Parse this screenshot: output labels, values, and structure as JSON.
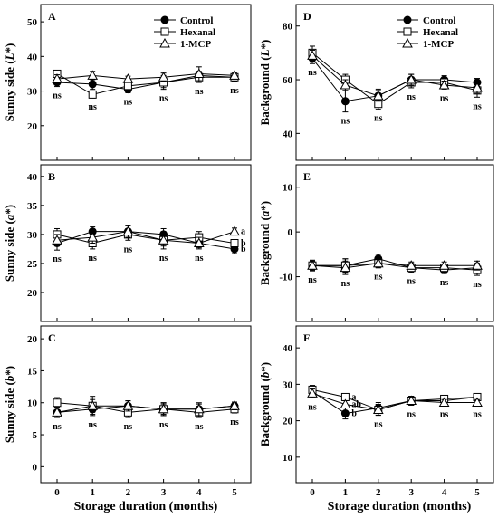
{
  "chart_data": [
    {
      "type": "line",
      "panel": "A",
      "ylabel_main": "Sunny side (",
      "ylabel_var": "L",
      "ylabel_suffix": "*)",
      "x": [
        0,
        1,
        2,
        3,
        4,
        5
      ],
      "ylim": [
        10,
        55
      ],
      "yticks": [
        20,
        30,
        40,
        50
      ],
      "series": [
        {
          "name": "Control",
          "marker": "circle-filled",
          "values": [
            32.5,
            32,
            30.5,
            32.5,
            34.5,
            34
          ],
          "err": [
            1.2,
            1.5,
            1.0,
            1.5,
            1.2,
            1.0
          ]
        },
        {
          "name": "Hexanal",
          "marker": "square-open",
          "values": [
            35,
            29,
            31.5,
            32.5,
            34,
            34
          ],
          "err": [
            1.0,
            1.0,
            1.0,
            2.0,
            1.5,
            1.2
          ]
        },
        {
          "name": "1-MCP",
          "marker": "triangle-open",
          "values": [
            33.5,
            34.5,
            33.5,
            34,
            35,
            34.5
          ],
          "err": [
            1.2,
            1.2,
            0.8,
            1.2,
            2.0,
            1.0
          ]
        }
      ],
      "annotations": [
        "ns",
        "ns",
        "ns",
        "ns",
        "ns",
        "ns"
      ],
      "legend": true
    },
    {
      "type": "line",
      "panel": "B",
      "ylabel_main": "Sunny side (",
      "ylabel_var": "a",
      "ylabel_suffix": "*)",
      "x": [
        0,
        1,
        2,
        3,
        4,
        5
      ],
      "ylim": [
        15,
        42
      ],
      "yticks": [
        20,
        25,
        30,
        35,
        40
      ],
      "series": [
        {
          "name": "Control",
          "marker": "circle-filled",
          "values": [
            28.5,
            30.5,
            30.5,
            30,
            28.5,
            27.5
          ],
          "err": [
            1.2,
            0.8,
            1.0,
            1.0,
            0.8,
            0.8
          ]
        },
        {
          "name": "Hexanal",
          "marker": "square-open",
          "values": [
            30,
            28.5,
            30,
            29,
            29.5,
            28.5
          ],
          "err": [
            1.0,
            1.0,
            1.0,
            1.5,
            1.0,
            0.6
          ]
        },
        {
          "name": "1-MCP",
          "marker": "triangle-open",
          "values": [
            29,
            29.5,
            30.5,
            29,
            28.5,
            30.5
          ],
          "err": [
            1.0,
            1.0,
            1.0,
            1.0,
            1.0,
            0.6
          ]
        }
      ],
      "annotations": [
        "ns",
        "ns",
        "ns",
        "ns",
        "ns",
        ""
      ],
      "group_labels": [
        "a",
        "b",
        "b"
      ],
      "legend": false
    },
    {
      "type": "line",
      "panel": "C",
      "ylabel_main": "Sunny side (",
      "ylabel_var": "b",
      "ylabel_suffix": "*)",
      "x": [
        0,
        1,
        2,
        3,
        4,
        5
      ],
      "ylim": [
        -2.5,
        22
      ],
      "yticks": [
        0,
        5,
        10,
        15,
        20
      ],
      "series": [
        {
          "name": "Control",
          "marker": "circle-filled",
          "values": [
            8.5,
            9,
            9.5,
            9,
            9,
            9.5
          ],
          "err": [
            0.8,
            0.8,
            0.8,
            0.8,
            0.8,
            0.6
          ]
        },
        {
          "name": "Hexanal",
          "marker": "square-open",
          "values": [
            10,
            9.5,
            8.5,
            9,
            8.5,
            9
          ],
          "err": [
            0.8,
            1.0,
            0.8,
            1.0,
            0.8,
            0.6
          ]
        },
        {
          "name": "1-MCP",
          "marker": "triangle-open",
          "values": [
            8.5,
            9.5,
            9.5,
            9,
            9,
            9.5
          ],
          "err": [
            0.8,
            1.5,
            0.8,
            1.0,
            1.0,
            0.6
          ]
        }
      ],
      "annotations": [
        "ns",
        "ns",
        "ns",
        "ns",
        "ns",
        "ns"
      ],
      "legend": false
    },
    {
      "type": "line",
      "panel": "D",
      "ylabel_main": "Background (",
      "ylabel_var": "L",
      "ylabel_suffix": "*)",
      "x": [
        0,
        1,
        2,
        3,
        4,
        5
      ],
      "ylim": [
        30,
        88
      ],
      "yticks": [
        40,
        60,
        80
      ],
      "series": [
        {
          "name": "Control",
          "marker": "circle-filled",
          "values": [
            68,
            52,
            54,
            60,
            60,
            59
          ],
          "err": [
            2.0,
            4.0,
            2.5,
            2.0,
            1.5,
            1.5
          ]
        },
        {
          "name": "Hexanal",
          "marker": "square-open",
          "values": [
            70,
            60,
            51,
            59,
            59,
            56
          ],
          "err": [
            2.5,
            2.0,
            2.0,
            2.0,
            1.5,
            2.5
          ]
        },
        {
          "name": "1-MCP",
          "marker": "triangle-open",
          "values": [
            69,
            58,
            54,
            60,
            58,
            57
          ],
          "err": [
            2.0,
            2.0,
            2.0,
            2.0,
            1.5,
            2.0
          ]
        }
      ],
      "annotations": [
        "ns",
        "ns",
        "ns",
        "ns",
        "ns",
        "ns"
      ],
      "legend": true
    },
    {
      "type": "line",
      "panel": "E",
      "ylabel_main": "Background (",
      "ylabel_var": "a",
      "ylabel_suffix": "*)",
      "x": [
        0,
        1,
        2,
        3,
        4,
        5
      ],
      "ylim": [
        -20,
        15
      ],
      "yticks": [
        -10,
        0,
        10
      ],
      "series": [
        {
          "name": "Control",
          "marker": "circle-filled",
          "values": [
            -7.5,
            -7.5,
            -6,
            -8,
            -8.5,
            -8
          ],
          "err": [
            1.0,
            1.5,
            1.0,
            0.8,
            0.8,
            1.0
          ]
        },
        {
          "name": "Hexanal",
          "marker": "square-open",
          "values": [
            -7.5,
            -7.5,
            -7,
            -8,
            -8,
            -8.5
          ],
          "err": [
            1.2,
            1.5,
            1.0,
            1.0,
            0.8,
            1.2
          ]
        },
        {
          "name": "1-MCP",
          "marker": "triangle-open",
          "values": [
            -7.5,
            -8,
            -7,
            -7.5,
            -7.5,
            -7.5
          ],
          "err": [
            1.0,
            1.5,
            1.0,
            0.8,
            0.8,
            1.0
          ]
        }
      ],
      "annotations": [
        "ns",
        "ns",
        "ns",
        "ns",
        "ns",
        "ns"
      ],
      "legend": false
    },
    {
      "type": "line",
      "panel": "F",
      "ylabel_main": "Background (",
      "ylabel_var": "b",
      "ylabel_suffix": "*)",
      "x": [
        0,
        1,
        2,
        3,
        4,
        5
      ],
      "ylim": [
        3,
        46
      ],
      "yticks": [
        10,
        20,
        30,
        40
      ],
      "series": [
        {
          "name": "Control",
          "marker": "circle-filled",
          "values": [
            28,
            22,
            23.5,
            25.5,
            25.5,
            26.5
          ],
          "err": [
            1.2,
            1.5,
            1.5,
            1.2,
            0.8,
            0.8
          ]
        },
        {
          "name": "Hexanal",
          "marker": "square-open",
          "values": [
            28.5,
            26.5,
            23,
            25.5,
            26,
            26.5
          ],
          "err": [
            1.2,
            0.8,
            1.5,
            1.2,
            0.8,
            0.8
          ]
        },
        {
          "name": "1-MCP",
          "marker": "triangle-open",
          "values": [
            27.5,
            24.5,
            23,
            25.5,
            25,
            25
          ],
          "err": [
            1.2,
            1.0,
            1.5,
            1.2,
            0.8,
            0.8
          ]
        }
      ],
      "annotations": [
        "ns",
        "",
        "ns",
        "ns",
        "ns",
        "ns"
      ],
      "point_labels": [
        {
          "x": 1,
          "series": "Hexanal",
          "label": "a"
        },
        {
          "x": 1,
          "series": "1-MCP",
          "label": "ab"
        },
        {
          "x": 1,
          "series": "Control",
          "label": "b"
        }
      ],
      "legend": false
    }
  ],
  "xlabel": "Storage duration (months)"
}
